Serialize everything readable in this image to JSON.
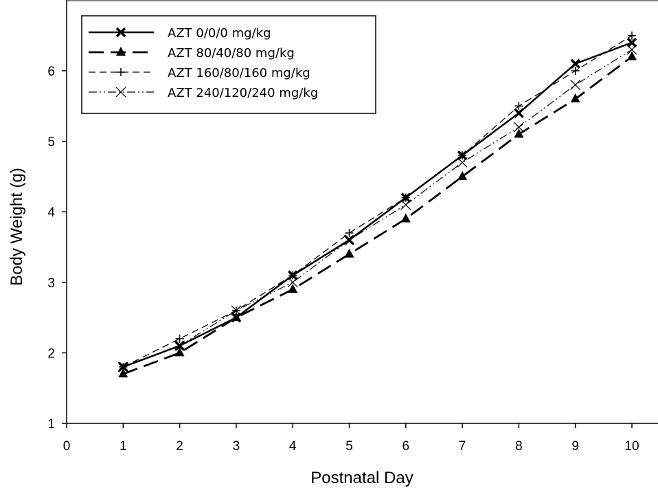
{
  "chart_data": {
    "type": "line",
    "title": "",
    "xlabel": "Postnatal Day",
    "ylabel": "Body Weight (g)",
    "xlim": [
      0,
      10
    ],
    "ylim": [
      1,
      7
    ],
    "xticks": [
      "0",
      "1",
      "2",
      "3",
      "4",
      "5",
      "6",
      "7",
      "8",
      "9",
      "10"
    ],
    "yticks": [
      "1",
      "2",
      "3",
      "4",
      "5",
      "6"
    ],
    "grid": false,
    "legend_position": "top-left",
    "x": [
      1,
      2,
      3,
      4,
      5,
      6,
      7,
      8,
      9,
      10
    ],
    "series": [
      {
        "name": "AZT 0/0/0 mg/kg",
        "line": "solid",
        "marker": "x-bold",
        "values": [
          1.8,
          2.1,
          2.5,
          3.1,
          3.6,
          4.2,
          4.8,
          5.4,
          6.1,
          6.4
        ]
      },
      {
        "name": "AZT 80/40/80 mg/kg",
        "line": "long-dash",
        "marker": "triangle",
        "values": [
          1.7,
          2.0,
          2.5,
          2.9,
          3.4,
          3.9,
          4.5,
          5.1,
          5.6,
          6.2
        ]
      },
      {
        "name": "AZT 160/80/160 mg/kg",
        "line": "short-dash",
        "marker": "plus",
        "values": [
          1.8,
          2.2,
          2.6,
          3.1,
          3.7,
          4.2,
          4.8,
          5.5,
          6.0,
          6.5
        ]
      },
      {
        "name": "AZT 240/120/240 mg/kg",
        "line": "dash-dot-dot",
        "marker": "x-thin",
        "values": [
          1.8,
          2.1,
          2.6,
          3.0,
          3.6,
          4.1,
          4.7,
          5.2,
          5.8,
          6.3
        ]
      }
    ]
  }
}
